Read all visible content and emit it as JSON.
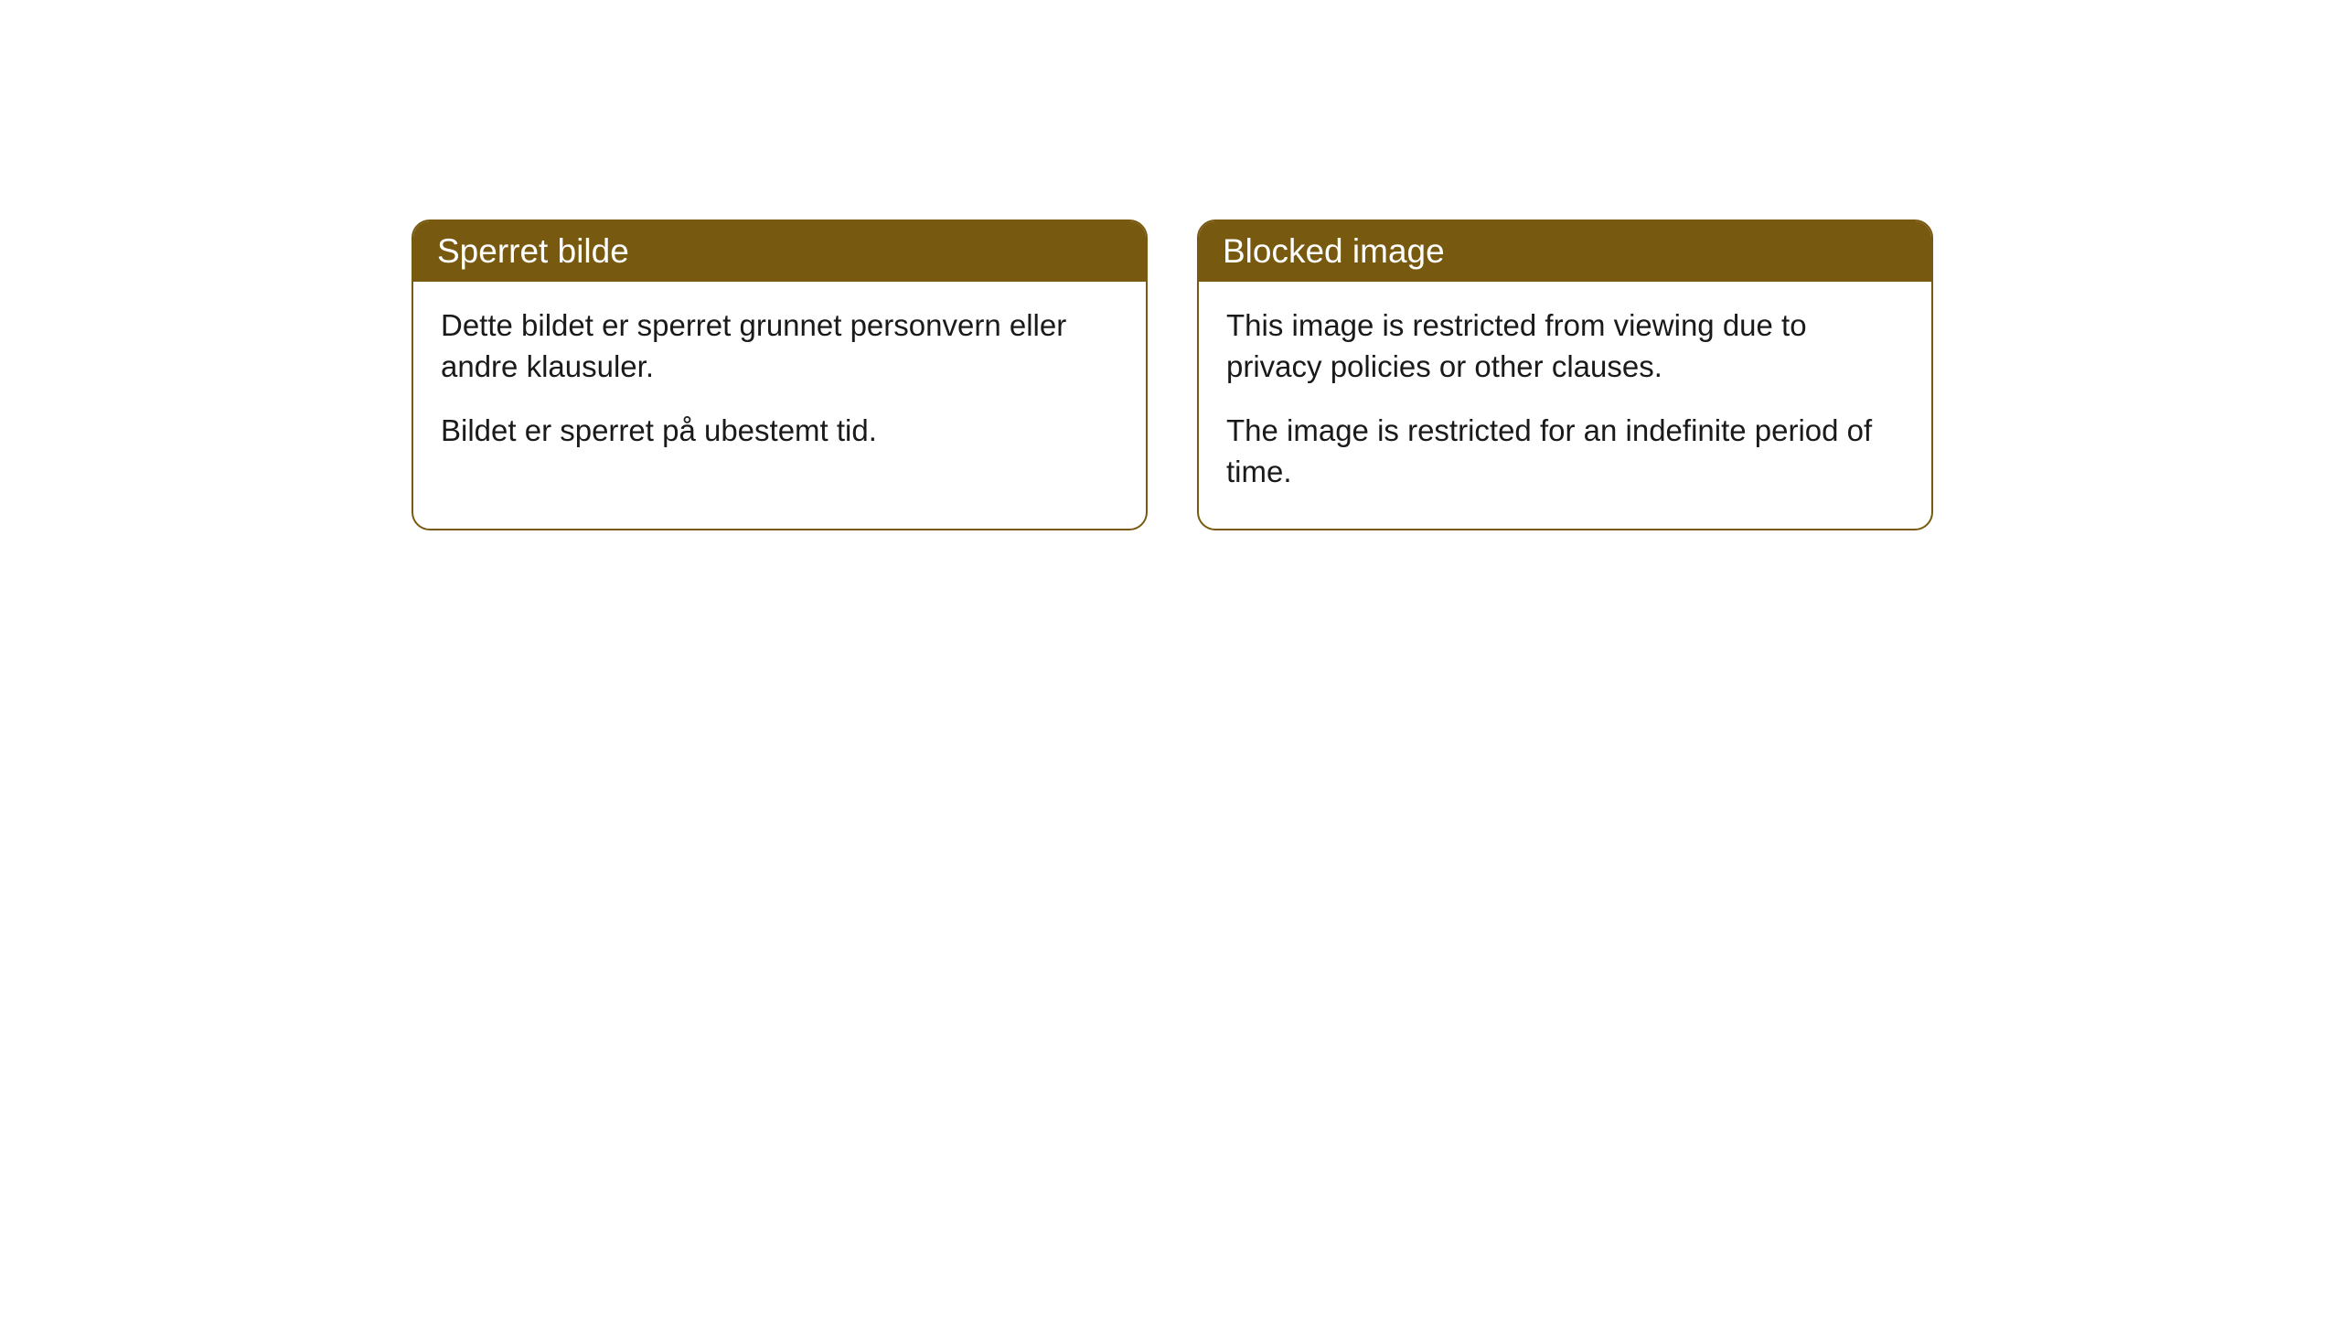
{
  "cards": [
    {
      "title": "Sperret bilde",
      "paragraph1": "Dette bildet er sperret grunnet personvern eller andre klausuler.",
      "paragraph2": "Bildet er sperret på ubestemt tid."
    },
    {
      "title": "Blocked image",
      "paragraph1": "This image is restricted from viewing due to privacy policies or other clauses.",
      "paragraph2": "The image is restricted for an indefinite period of time."
    }
  ],
  "styling": {
    "header_background": "#785910",
    "header_text_color": "#ffffff",
    "border_color": "#785910",
    "body_text_color": "#1a1a1a",
    "card_background": "#ffffff",
    "page_background": "#ffffff",
    "border_radius": 20,
    "header_fontsize": 37,
    "body_fontsize": 33
  }
}
